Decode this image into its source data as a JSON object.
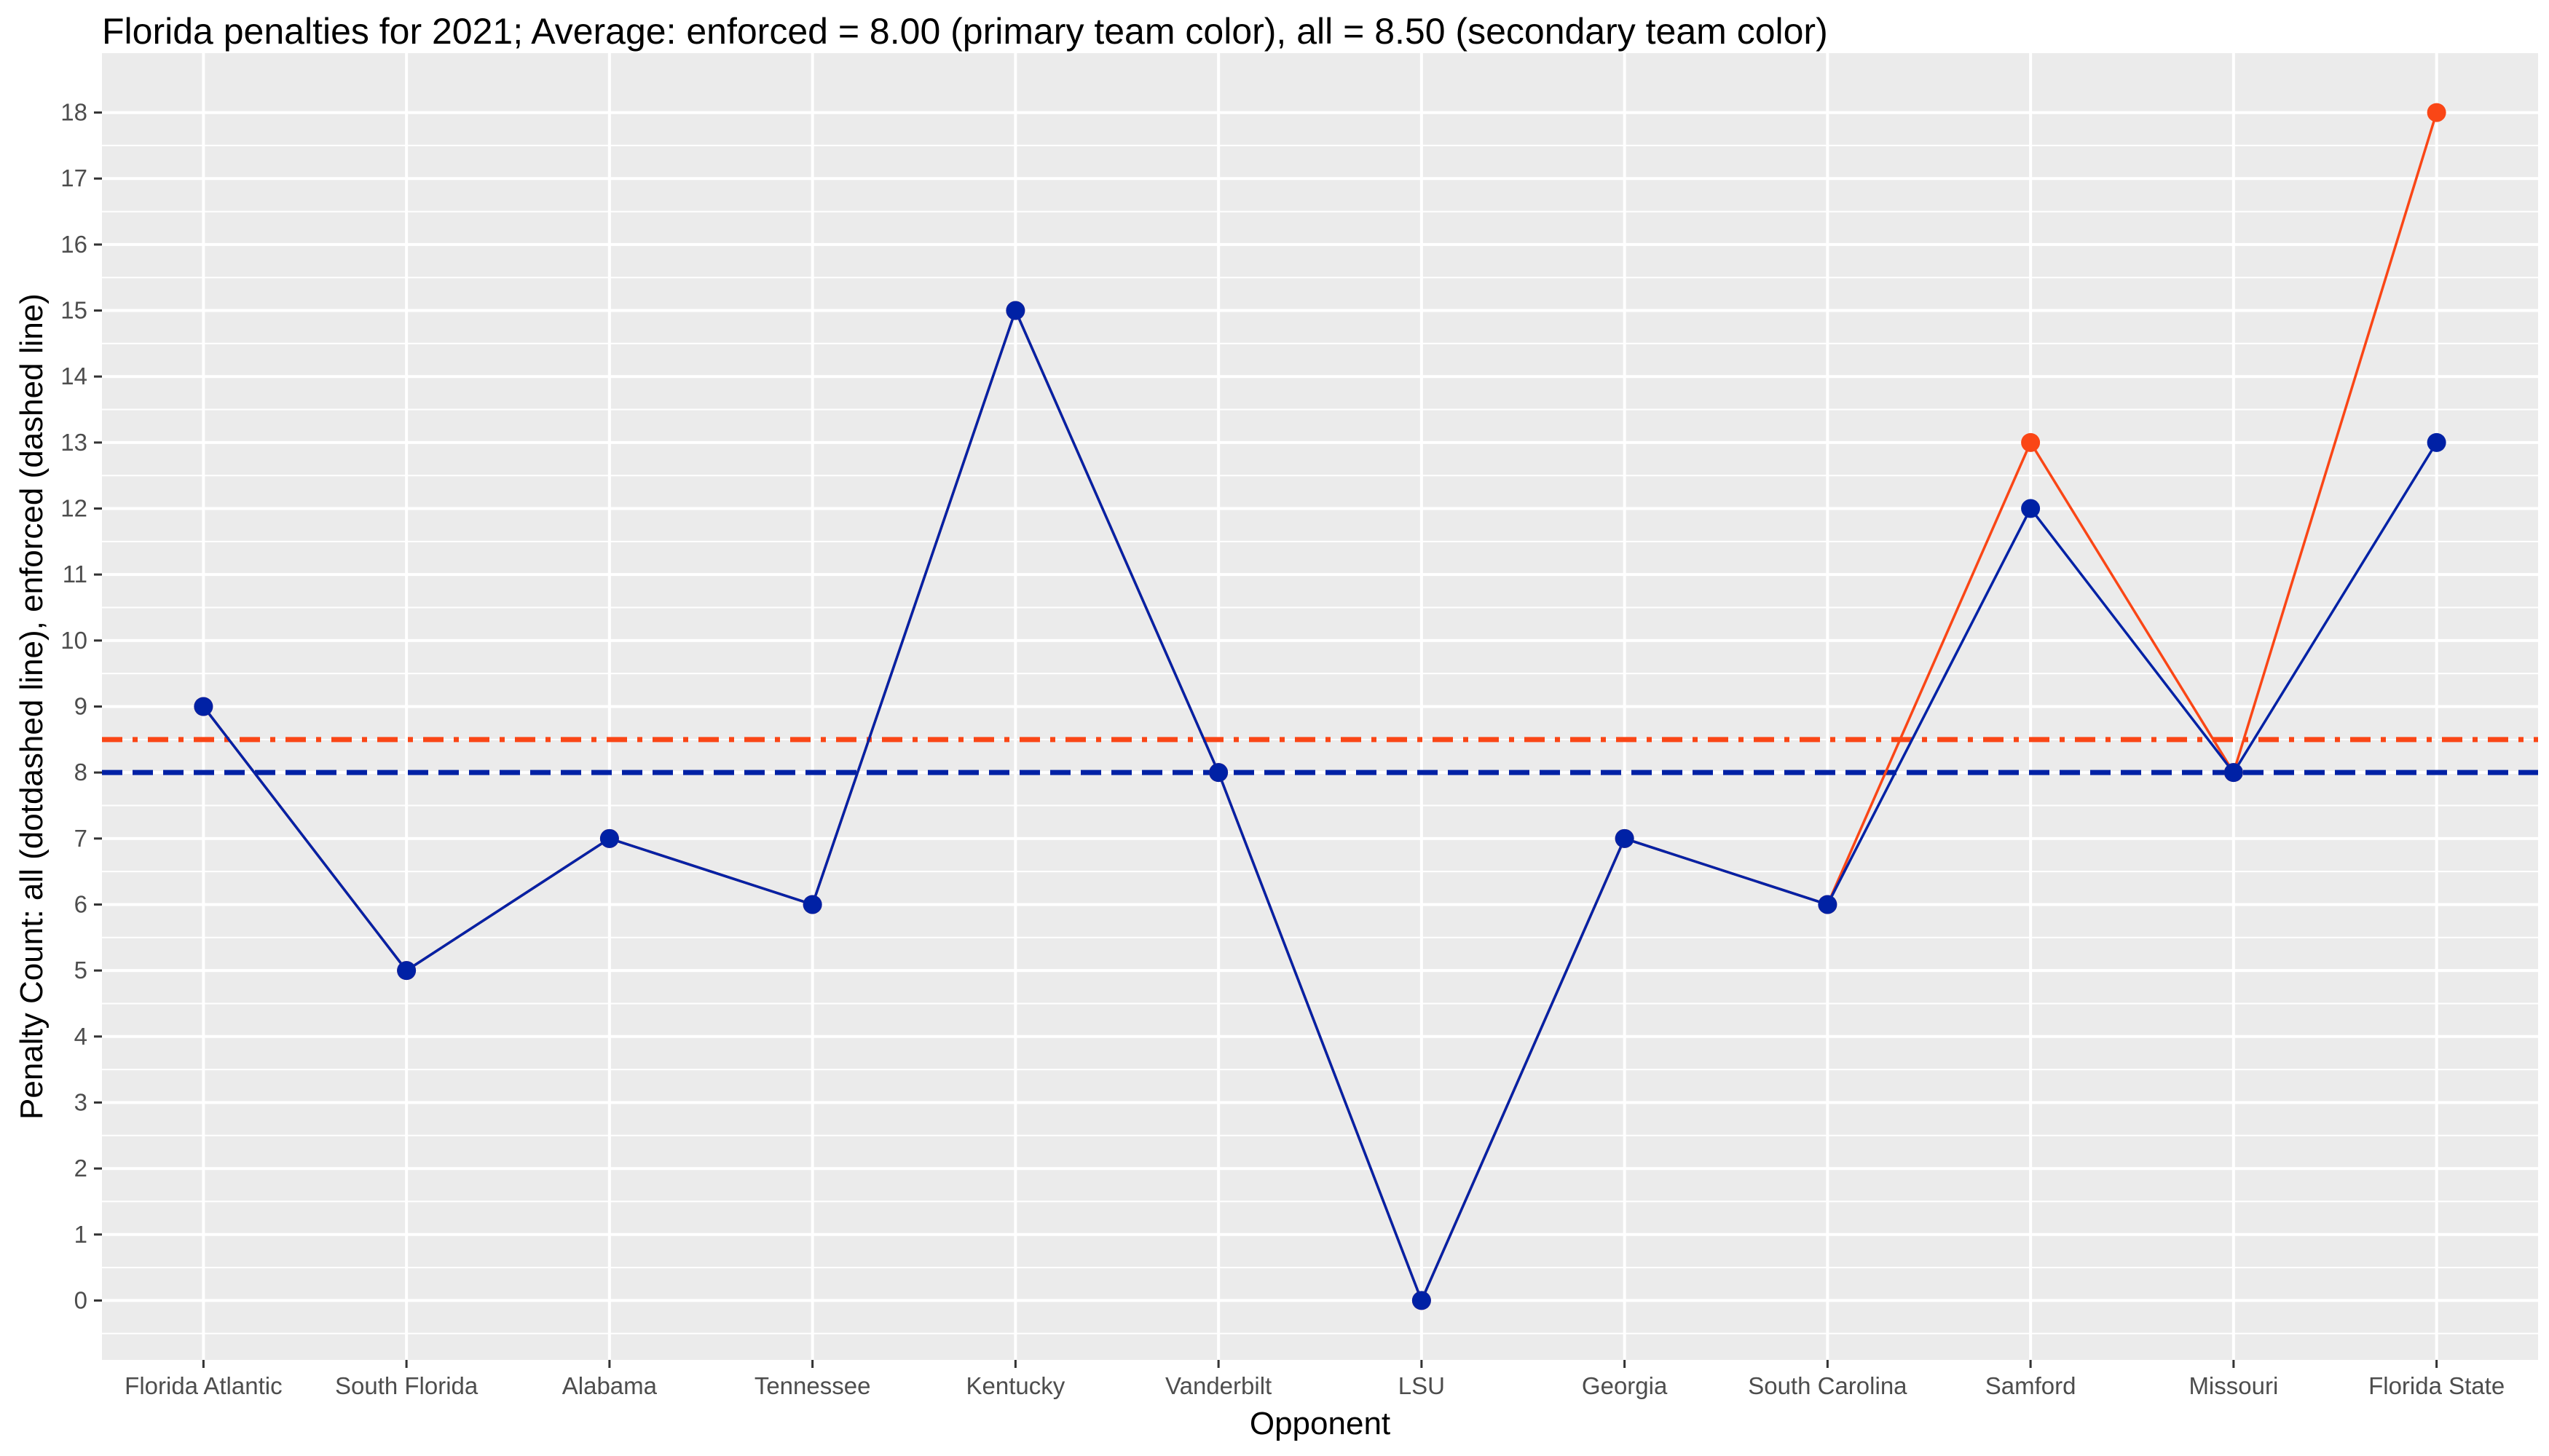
{
  "chart_data": {
    "type": "line",
    "title": "Florida penalties for 2021; Average: enforced = 8.00 (primary team color), all = 8.50 (secondary team color)",
    "xlabel": "Opponent",
    "ylabel": "Penalty Count: all (dotdashed line), enforced (dashed line)",
    "categories": [
      "Florida Atlantic",
      "South Florida",
      "Alabama",
      "Tennessee",
      "Kentucky",
      "Vanderbilt",
      "LSU",
      "Georgia",
      "South Carolina",
      "Samford",
      "Missouri",
      "Florida State"
    ],
    "ylim": [
      -0.9,
      18.9
    ],
    "yticks": [
      0,
      1,
      2,
      3,
      4,
      5,
      6,
      7,
      8,
      9,
      10,
      11,
      12,
      13,
      14,
      15,
      16,
      17,
      18
    ],
    "grid": true,
    "legend": "none",
    "series": [
      {
        "key": "all",
        "values": [
          9,
          5,
          7,
          6,
          15,
          8,
          0,
          7,
          6,
          13,
          8,
          18
        ],
        "color": "#FA4616"
      },
      {
        "key": "enforced",
        "values": [
          9,
          5,
          7,
          6,
          15,
          8,
          0,
          7,
          6,
          12,
          8,
          13
        ],
        "color": "#0021A5"
      }
    ],
    "reference_lines": [
      {
        "key": "all-average",
        "value": 8.5,
        "style": "dotdash",
        "color": "#FA4616"
      },
      {
        "key": "enforced-average",
        "value": 8.0,
        "style": "dashed",
        "color": "#0021A5"
      }
    ],
    "panel_background": "#EBEBEB",
    "grid_color": "#FFFFFF"
  }
}
